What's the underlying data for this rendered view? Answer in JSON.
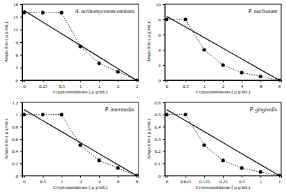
{
  "chart_data": [
    {
      "type": "line",
      "title": "A. actinomycetemcomitans",
      "x_label": "Cryptotanshinone ( μ g/mL)",
      "y_label": "Ampicillin ( μ g/mL)",
      "categories": [
        "0",
        "0.25",
        "0.5",
        "1",
        "1",
        "2",
        "2"
      ],
      "ylim": [
        0,
        18
      ],
      "yticks": [
        0,
        3,
        6,
        9,
        12,
        15,
        18
      ],
      "series": [
        {
          "values": [
            16,
            16,
            16,
            8,
            4,
            2,
            0
          ],
          "color": "#000000",
          "line_style": "dotted",
          "marker": "circle"
        },
        {
          "values": [
            16.5,
            13.75,
            11,
            8.25,
            5.5,
            2.75,
            0
          ],
          "color": "#000000",
          "line_style": "solid"
        }
      ]
    },
    {
      "type": "line",
      "title": "F. nucleatum",
      "x_label": "Cryptotanshinone ( μ g/mL)",
      "y_label": "Ampicillin ( μ g/mL)",
      "categories": [
        "0",
        "0.5",
        "1",
        "2",
        "4",
        "8",
        "8"
      ],
      "ylim": [
        0,
        10
      ],
      "yticks": [
        0,
        2,
        4,
        6,
        8,
        10
      ],
      "series": [
        {
          "values": [
            8,
            8,
            4,
            2,
            1,
            0.5,
            0
          ],
          "color": "#000000",
          "line_style": "dotted",
          "marker": "circle"
        },
        {
          "values": [
            8.4,
            7,
            5.6,
            4.2,
            2.8,
            1.4,
            0
          ],
          "color": "#000000",
          "line_style": "solid"
        }
      ]
    },
    {
      "type": "line",
      "title": "P. intermedia",
      "x_label": "Cryptotanshinone ( μ g/mL)",
      "y_label": "Ampicillin ( μ g/mL)",
      "categories": [
        "0",
        "0.5",
        "1",
        "2",
        "4",
        "8",
        "8"
      ],
      "ylim": [
        0,
        1.2
      ],
      "yticks": [
        0,
        0.2,
        0.4,
        0.6,
        0.8,
        1,
        1.2
      ],
      "series": [
        {
          "values": [
            1,
            1,
            1,
            0.5,
            0.25,
            0.125,
            0
          ],
          "color": "#000000",
          "line_style": "dotted",
          "marker": "circle"
        },
        {
          "values": [
            1.08,
            0.9,
            0.72,
            0.54,
            0.36,
            0.18,
            0
          ],
          "color": "#000000",
          "line_style": "solid"
        }
      ]
    },
    {
      "type": "line",
      "title": "P. gingivalis",
      "x_label": "Cryptotanshinone ( μ g/mL)",
      "y_label": "Ampicillin ( μ g/mL)",
      "categories": [
        "0",
        "0.625",
        "0.125",
        "0.25",
        "0.5",
        "1",
        "1"
      ],
      "ylim": [
        0,
        0.6
      ],
      "yticks": [
        0,
        0.1,
        0.2,
        0.3,
        0.4,
        0.5,
        0.6
      ],
      "series": [
        {
          "values": [
            0.5,
            0.5,
            0.25,
            0.125,
            0.0625,
            0.03,
            0
          ],
          "color": "#000000",
          "line_style": "dotted",
          "marker": "circle"
        },
        {
          "values": [
            0.54,
            0.45,
            0.36,
            0.27,
            0.18,
            0.09,
            0
          ],
          "color": "#000000",
          "line_style": "solid"
        }
      ]
    }
  ]
}
